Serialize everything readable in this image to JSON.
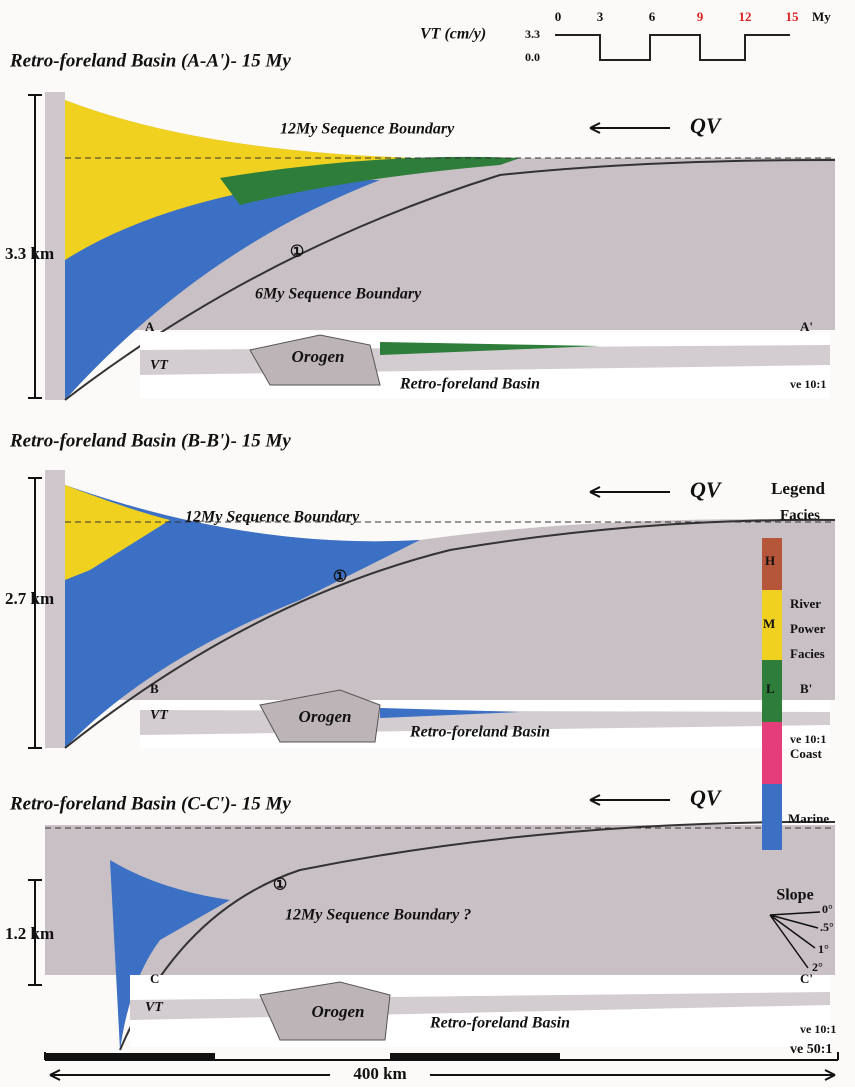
{
  "header": {
    "vt_label": "VT (cm/y)",
    "vt_high": "3.3",
    "vt_low": "0.0",
    "time_ticks": [
      "0",
      "3",
      "6",
      "9",
      "12",
      "15"
    ],
    "time_unit": "My"
  },
  "panels": [
    {
      "title": "Retro-foreland Basin (A-A')- 15 My",
      "qv": "QV",
      "annotations": [
        "12My Sequence Boundary",
        "6My Sequence Boundary"
      ],
      "marker": "①",
      "scale": "3.3 km",
      "section_start": "A",
      "section_end": "A'",
      "inset": {
        "orogen": "Orogen",
        "vt": "VT",
        "basin": "Retro-foreland Basin",
        "ve": "ve 10:1"
      }
    },
    {
      "title": "Retro-foreland Basin (B-B')- 15 My",
      "qv": "QV",
      "annotations": [
        "12My Sequence Boundary"
      ],
      "marker": "①",
      "scale": "2.7 km",
      "section_start": "B",
      "section_end": "B'",
      "inset": {
        "orogen": "Orogen",
        "vt": "VT",
        "basin": "Retro-foreland Basin",
        "ve": "ve 10:1"
      }
    },
    {
      "title": "Retro-foreland Basin  (C-C')- 15 My",
      "qv": "QV",
      "annotations": [
        "12My Sequence Boundary ?"
      ],
      "marker": "①",
      "scale": "1.2 km",
      "section_start": "C",
      "section_end": "C'",
      "inset": {
        "orogen": "Orogen",
        "vt": "VT",
        "basin": "Retro-foreland Basin",
        "ve": "ve 10:1"
      }
    }
  ],
  "legend": {
    "title": "Legend",
    "subtitle": "Facies",
    "h": "H",
    "m": "M",
    "l": "L",
    "river": [
      "River",
      "Power",
      "Facies"
    ],
    "coast": "Coast",
    "marine": "Marine"
  },
  "slope": {
    "title": "Slope",
    "labels": [
      "0°",
      ".5°",
      "1°",
      "2°"
    ]
  },
  "footer": {
    "ve": "ve 50:1",
    "distance": "400 km"
  }
}
